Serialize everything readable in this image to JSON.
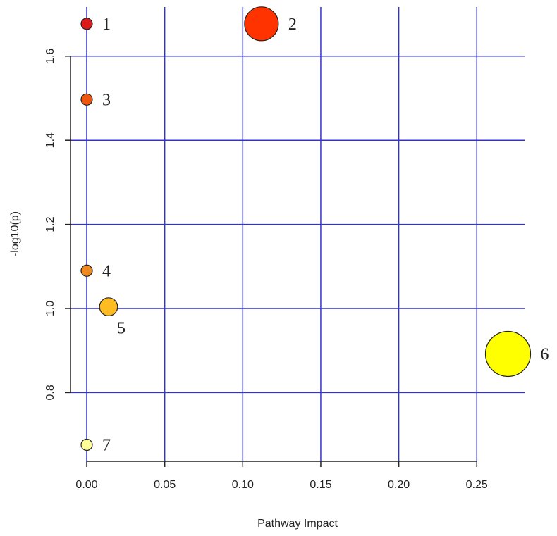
{
  "chart_data": {
    "type": "scatter",
    "title": "",
    "xlabel": "Pathway Impact",
    "ylabel": "-log10(p)",
    "xlim": [
      -0.01,
      0.28
    ],
    "ylim": [
      0.64,
      1.72
    ],
    "x_ticks": [
      0.0,
      0.05,
      0.1,
      0.15,
      0.2,
      0.25
    ],
    "x_tick_labels": [
      "0.00",
      "0.05",
      "0.10",
      "0.15",
      "0.20",
      "0.25"
    ],
    "y_ticks": [
      0.8,
      1.0,
      1.2,
      1.4,
      1.6
    ],
    "y_tick_labels": [
      "0.8",
      "1.0",
      "1.2",
      "1.4",
      "1.6"
    ],
    "grid": true,
    "points": [
      {
        "label": "1",
        "x": 0.0,
        "y": 1.677,
        "color": "#dd1a1a",
        "size": 1
      },
      {
        "label": "2",
        "x": 0.112,
        "y": 1.677,
        "color": "#ff3300",
        "size": 3
      },
      {
        "label": "3",
        "x": 0.0,
        "y": 1.497,
        "color": "#ee5511",
        "size": 1
      },
      {
        "label": "4",
        "x": 0.0,
        "y": 1.09,
        "color": "#ee8822",
        "size": 1
      },
      {
        "label": "5",
        "x": 0.014,
        "y": 1.004,
        "color": "#ffbb22",
        "size": 1.6
      },
      {
        "label": "6",
        "x": 0.27,
        "y": 0.892,
        "color": "#ffff00",
        "size": 4
      },
      {
        "label": "7",
        "x": 0.0,
        "y": 0.676,
        "color": "#ffff99",
        "size": 1
      }
    ]
  }
}
